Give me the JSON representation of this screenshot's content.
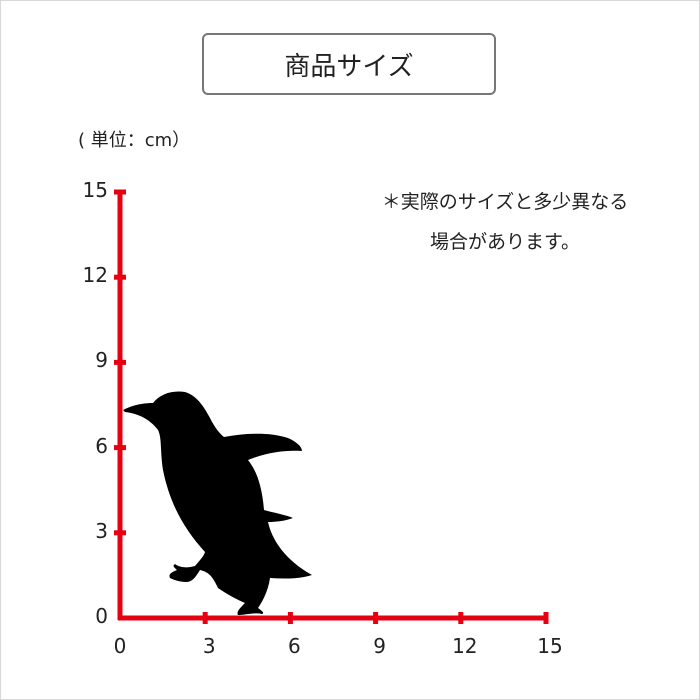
{
  "title": "商品サイズ",
  "unit_label": "( 単位：cm）",
  "note": [
    "＊実際のサイズと多少異なる",
    "場合があります。"
  ],
  "axis_color": "#e60012",
  "y_ticks": [
    "0",
    "3",
    "6",
    "9",
    "12",
    "15"
  ],
  "x_ticks": [
    "0",
    "3",
    "6",
    "9",
    "12",
    "15"
  ],
  "axis_range": [
    0,
    15
  ],
  "silhouette": "penguin-icon"
}
